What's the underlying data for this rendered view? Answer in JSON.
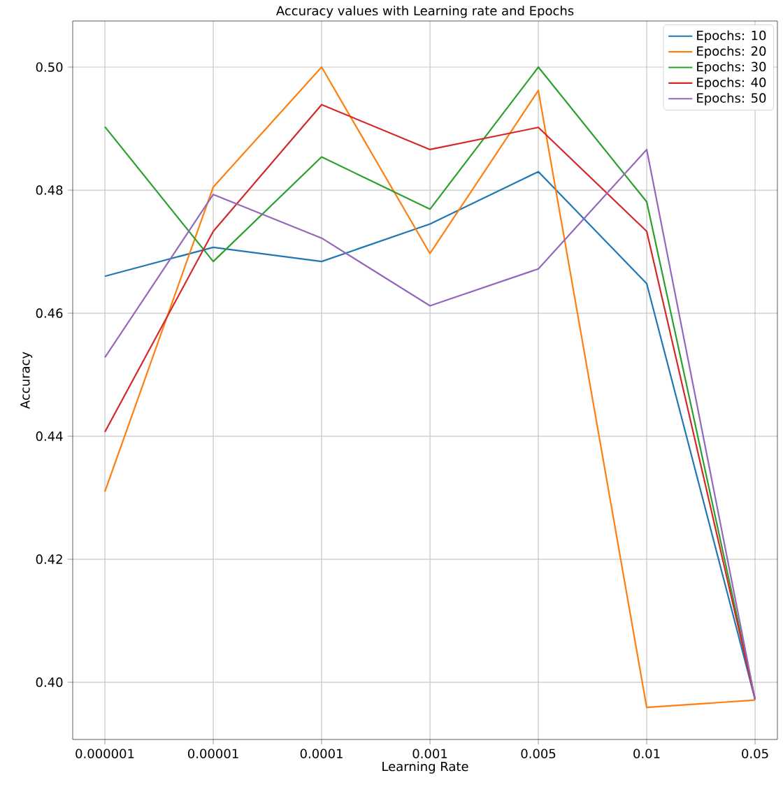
{
  "chart_data": {
    "type": "line",
    "title": "Accuracy values with Learning rate and Epochs",
    "xlabel": "Learning Rate",
    "ylabel": "Accuracy",
    "categories": [
      "0.000001",
      "0.00001",
      "0.0001",
      "0.001",
      "0.005",
      "0.01",
      "0.05"
    ],
    "series": [
      {
        "name": "Epochs: 10",
        "color": "#1f77b4",
        "values": [
          0.466,
          0.4707,
          0.4684,
          0.4745,
          0.483,
          0.4648,
          0.3972
        ]
      },
      {
        "name": "Epochs: 20",
        "color": "#ff7f0e",
        "values": [
          0.431,
          0.4805,
          0.5,
          0.4697,
          0.4962,
          0.3959,
          0.3971
        ]
      },
      {
        "name": "Epochs: 30",
        "color": "#2ca02c",
        "values": [
          0.4903,
          0.4684,
          0.4854,
          0.4769,
          0.5,
          0.4781,
          0.3972
        ]
      },
      {
        "name": "Epochs: 40",
        "color": "#d62728",
        "values": [
          0.4407,
          0.4733,
          0.4939,
          0.4866,
          0.4902,
          0.4733,
          0.3972
        ]
      },
      {
        "name": "Epochs: 50",
        "color": "#9467bd",
        "values": [
          0.4528,
          0.4793,
          0.4722,
          0.4612,
          0.4672,
          0.4866,
          0.3972
        ]
      }
    ],
    "ylim": [
      0.3907,
      0.5075
    ],
    "yticks": [
      {
        "value": 0.4,
        "label": "0.40"
      },
      0.42,
      0.44,
      0.46,
      0.48,
      {
        "value": 0.5,
        "label": "0.50"
      }
    ],
    "grid": true,
    "legend": "top right",
    "marker": "none",
    "line_style": "solid"
  }
}
